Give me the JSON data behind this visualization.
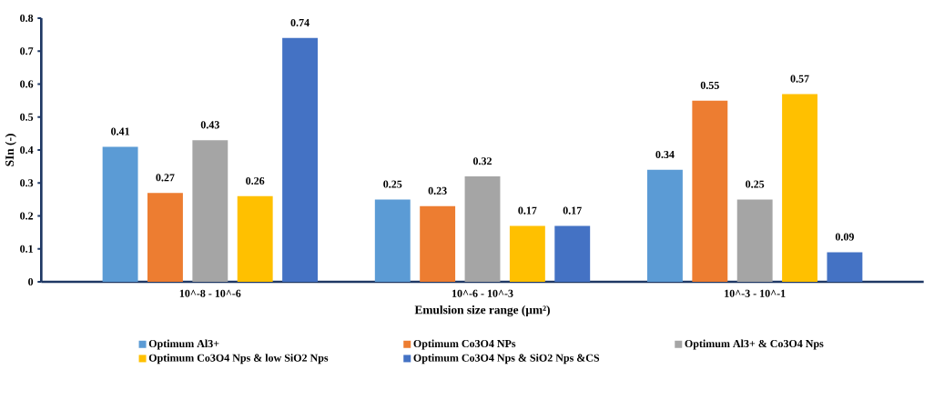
{
  "chart_data": {
    "type": "bar",
    "xlabel": "Emulsion size range (µm²)",
    "ylabel": "SIn (-)",
    "categories": [
      "10^-8 - 10^-6",
      "10^-6 - 10^-3",
      "10^-3 - 10^-1"
    ],
    "series": [
      {
        "name": "Optimum Al3+",
        "color": "#5b9bd5",
        "values": [
          0.41,
          0.25,
          0.34
        ]
      },
      {
        "name": "Optimum Co3O4 NPs",
        "color": "#ed7d31",
        "values": [
          0.27,
          0.23,
          0.55
        ]
      },
      {
        "name": "Optimum Al3+ & Co3O4 Nps",
        "color": "#a5a5a5",
        "values": [
          0.43,
          0.32,
          0.25
        ]
      },
      {
        "name": "Optimum  Co3O4 Nps & low SiO2 Nps",
        "color": "#ffc000",
        "values": [
          0.26,
          0.17,
          0.57
        ]
      },
      {
        "name": "Optimum  Co3O4 Nps & SiO2 Nps &CS",
        "color": "#4472c4",
        "values": [
          0.74,
          0.17,
          0.09
        ]
      }
    ],
    "ylim": [
      0,
      0.8
    ],
    "yticks": [
      0,
      0.1,
      0.2,
      0.3,
      0.4,
      0.5,
      0.6,
      0.7,
      0.8
    ],
    "data_labels": true,
    "grid": false,
    "legend": "bottom"
  }
}
